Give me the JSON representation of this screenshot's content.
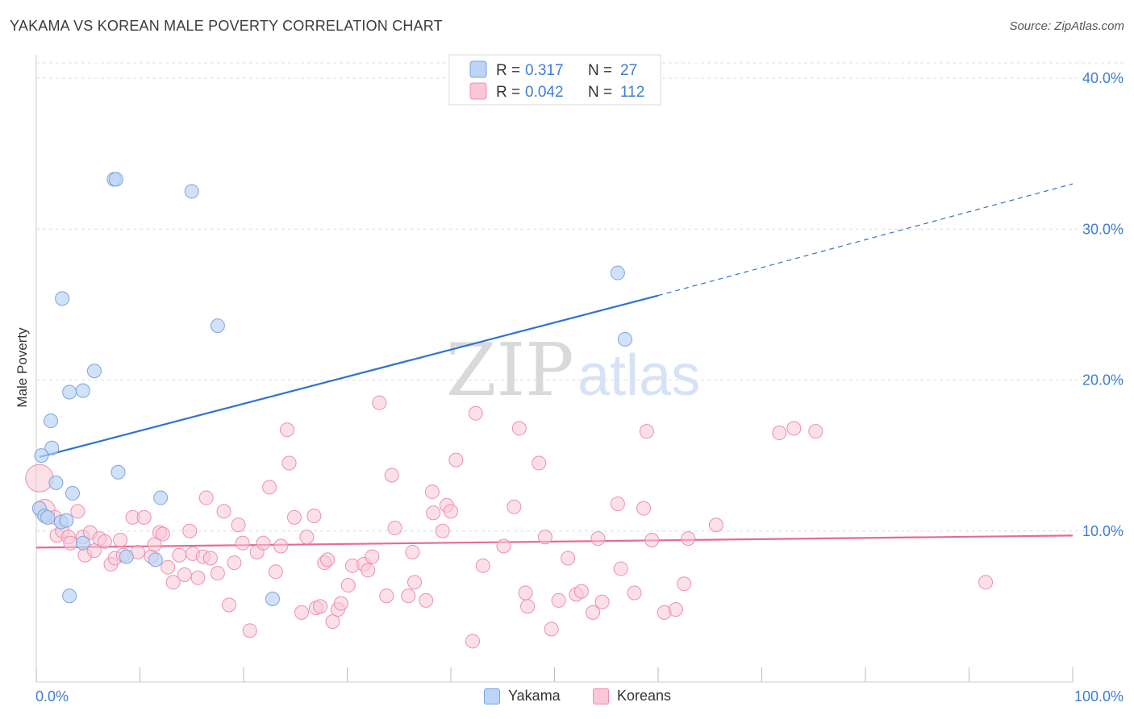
{
  "title": "YAKAMA VS KOREAN MALE POVERTY CORRELATION CHART",
  "source": "Source: ZipAtlas.com",
  "watermark": {
    "zip": "ZIP",
    "atlas": "atlas"
  },
  "colors": {
    "yakama_fill": "#bcd4f5",
    "yakama_stroke": "#7aa6e0",
    "yakama_line": "#2f73cf",
    "koreans_fill": "#f9c7d6",
    "koreans_stroke": "#ec8fad",
    "koreans_line": "#e76a96",
    "tick_label": "#3f7dd1",
    "grid": "#dddddd"
  },
  "legend": {
    "rows": [
      {
        "r_label": "R =",
        "r_value": "0.317",
        "n_label": "N =",
        "n_value": "27"
      },
      {
        "r_label": "R =",
        "r_value": "0.042",
        "n_label": "N =",
        "n_value": "112"
      }
    ]
  },
  "bottom_legend": [
    "Yakama",
    "Koreans"
  ],
  "chart_data": {
    "type": "scatter",
    "ylabel": "Male Poverty",
    "xlabel": "",
    "xlim": [
      0,
      100
    ],
    "ylim": [
      0,
      42
    ],
    "x_tick_labels": {
      "left": "0.0%",
      "right": "100.0%"
    },
    "y_ticks": [
      10,
      20,
      30,
      40
    ],
    "y_tick_labels": [
      "10.0%",
      "20.0%",
      "30.0%",
      "40.0%"
    ],
    "grid": true,
    "series": [
      {
        "name": "Yakama",
        "R": 0.317,
        "N": 27,
        "trend": {
          "x0": 0.3,
          "y0": 14.9,
          "x1": 60,
          "y1": 25.6,
          "dashed_to_x": 100,
          "dashed_to_y": 33
        },
        "points": [
          [
            7.5,
            33.3
          ],
          [
            7.7,
            33.3
          ],
          [
            15,
            32.5
          ],
          [
            2.5,
            25.4
          ],
          [
            17.5,
            23.6
          ],
          [
            5.6,
            20.6
          ],
          [
            3.2,
            19.2
          ],
          [
            4.5,
            19.3
          ],
          [
            1.4,
            17.3
          ],
          [
            1.5,
            15.5
          ],
          [
            0.5,
            15.0
          ],
          [
            7.9,
            13.9
          ],
          [
            1.9,
            13.2
          ],
          [
            3.5,
            12.5
          ],
          [
            12,
            12.2
          ],
          [
            0.3,
            11.5
          ],
          [
            0.8,
            11.0
          ],
          [
            1.1,
            10.9
          ],
          [
            2.4,
            10.6
          ],
          [
            2.9,
            10.7
          ],
          [
            4.5,
            9.2
          ],
          [
            8.7,
            8.3
          ],
          [
            11.5,
            8.1
          ],
          [
            3.2,
            5.7
          ],
          [
            22.8,
            5.5
          ],
          [
            56.1,
            27.1
          ],
          [
            56.8,
            22.7
          ]
        ]
      },
      {
        "name": "Koreans",
        "R": 0.042,
        "N": 112,
        "trend": {
          "x0": 0,
          "y0": 8.9,
          "x1": 100,
          "y1": 9.7
        },
        "points": [
          [
            0.3,
            13.5
          ],
          [
            0.8,
            11.4
          ],
          [
            1.8,
            10.9
          ],
          [
            2.0,
            9.7
          ],
          [
            2.5,
            10.0
          ],
          [
            3.1,
            9.6
          ],
          [
            3.3,
            9.2
          ],
          [
            4.0,
            11.3
          ],
          [
            4.5,
            9.6
          ],
          [
            4.7,
            8.4
          ],
          [
            5.2,
            9.9
          ],
          [
            5.6,
            8.7
          ],
          [
            6.1,
            9.5
          ],
          [
            6.6,
            9.3
          ],
          [
            7.2,
            7.8
          ],
          [
            7.6,
            8.2
          ],
          [
            8.1,
            9.4
          ],
          [
            8.4,
            8.4
          ],
          [
            9.3,
            10.9
          ],
          [
            9.8,
            8.6
          ],
          [
            10.4,
            10.9
          ],
          [
            11.1,
            8.3
          ],
          [
            11.4,
            9.1
          ],
          [
            11.9,
            9.9
          ],
          [
            12.2,
            9.8
          ],
          [
            12.7,
            7.6
          ],
          [
            13.2,
            6.6
          ],
          [
            13.8,
            8.4
          ],
          [
            14.3,
            7.1
          ],
          [
            14.8,
            10.0
          ],
          [
            15.1,
            8.5
          ],
          [
            15.6,
            6.9
          ],
          [
            16.1,
            8.3
          ],
          [
            16.4,
            12.2
          ],
          [
            16.8,
            8.2
          ],
          [
            17.5,
            7.2
          ],
          [
            18.1,
            11.3
          ],
          [
            18.6,
            5.1
          ],
          [
            19.1,
            7.9
          ],
          [
            19.5,
            10.4
          ],
          [
            19.9,
            9.2
          ],
          [
            20.6,
            3.4
          ],
          [
            21.3,
            8.6
          ],
          [
            21.9,
            9.2
          ],
          [
            22.5,
            12.9
          ],
          [
            23.1,
            7.3
          ],
          [
            23.6,
            9.0
          ],
          [
            24.2,
            16.7
          ],
          [
            24.4,
            14.5
          ],
          [
            24.9,
            10.9
          ],
          [
            25.6,
            4.6
          ],
          [
            26.1,
            9.6
          ],
          [
            26.8,
            11.0
          ],
          [
            27.0,
            4.9
          ],
          [
            27.4,
            5.0
          ],
          [
            27.8,
            7.9
          ],
          [
            28.1,
            8.1
          ],
          [
            28.6,
            4.0
          ],
          [
            29.1,
            4.8
          ],
          [
            29.4,
            5.2
          ],
          [
            30.1,
            6.4
          ],
          [
            30.5,
            7.7
          ],
          [
            31.6,
            7.8
          ],
          [
            32.0,
            7.4
          ],
          [
            32.4,
            8.3
          ],
          [
            33.1,
            18.5
          ],
          [
            33.8,
            5.7
          ],
          [
            34.3,
            13.7
          ],
          [
            34.6,
            10.2
          ],
          [
            35.9,
            5.7
          ],
          [
            36.3,
            8.6
          ],
          [
            36.5,
            6.6
          ],
          [
            37.6,
            5.4
          ],
          [
            38.2,
            12.6
          ],
          [
            38.3,
            11.2
          ],
          [
            39.2,
            10.0
          ],
          [
            39.6,
            11.7
          ],
          [
            40.0,
            11.3
          ],
          [
            40.5,
            14.7
          ],
          [
            42.1,
            2.7
          ],
          [
            42.4,
            17.8
          ],
          [
            43.1,
            7.7
          ],
          [
            45.1,
            9.0
          ],
          [
            46.1,
            11.6
          ],
          [
            46.6,
            16.8
          ],
          [
            47.2,
            5.9
          ],
          [
            47.4,
            5.0
          ],
          [
            48.5,
            14.5
          ],
          [
            49.1,
            9.6
          ],
          [
            49.7,
            3.5
          ],
          [
            50.4,
            5.4
          ],
          [
            51.3,
            8.2
          ],
          [
            52.1,
            5.8
          ],
          [
            52.6,
            6.0
          ],
          [
            53.7,
            4.6
          ],
          [
            54.2,
            9.5
          ],
          [
            54.6,
            5.3
          ],
          [
            56.1,
            11.8
          ],
          [
            56.4,
            7.5
          ],
          [
            57.7,
            5.9
          ],
          [
            58.6,
            11.5
          ],
          [
            58.9,
            16.6
          ],
          [
            59.4,
            9.4
          ],
          [
            60.6,
            4.6
          ],
          [
            61.7,
            4.8
          ],
          [
            62.5,
            6.5
          ],
          [
            62.9,
            9.5
          ],
          [
            65.6,
            10.4
          ],
          [
            71.7,
            16.5
          ],
          [
            73.1,
            16.8
          ],
          [
            75.2,
            16.6
          ],
          [
            91.6,
            6.6
          ]
        ]
      }
    ]
  }
}
